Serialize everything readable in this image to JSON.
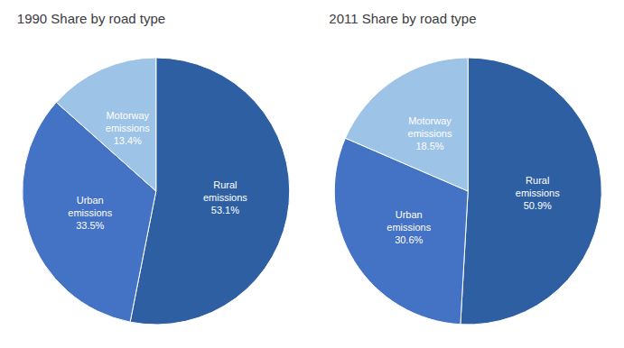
{
  "chart_data": [
    {
      "type": "pie",
      "title": "1990 Share by road type",
      "values": [
        53.1,
        33.5,
        13.4
      ],
      "value_labels": [
        "Rural\nemissions\n53.1%",
        "Urban\nemissions\n33.5%",
        "Motorway\nemissions\n13.4%"
      ],
      "data_labels": true,
      "colors": [
        "#2E5FA3",
        "#4472C4",
        "#9DC3E6"
      ]
    },
    {
      "type": "pie",
      "title": "2011 Share by road type",
      "values": [
        50.9,
        30.6,
        18.5
      ],
      "value_labels": [
        "Rural\nemissions\n50.9%",
        "Urban\nemissions\n30.6%",
        "Motorway\nemissions\n18.5%"
      ],
      "data_labels": true,
      "colors": [
        "#2E5FA3",
        "#4472C4",
        "#9DC3E6"
      ]
    }
  ]
}
